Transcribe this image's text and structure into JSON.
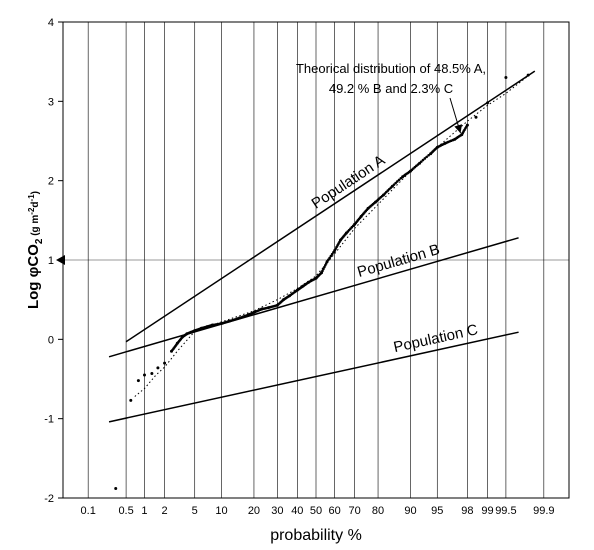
{
  "chart_data": {
    "type": "scatter",
    "xlabel": "probability %",
    "ylabel": {
      "main": "Log φCO",
      "sub": "2",
      "unit_open": " (g m",
      "unit_exp1": "-2",
      "unit_mid": "d",
      "unit_exp2": "-1",
      "unit_close": ")"
    },
    "x_scale": "normal-probability",
    "xlim": [
      0.03,
      99.97
    ],
    "ylim": [
      -2,
      4
    ],
    "grid": "vertical",
    "x_ticks": [
      "0.1",
      "0.5",
      "1",
      "2",
      "5",
      "10",
      "20",
      "30",
      "40",
      "50",
      "60",
      "70",
      "80",
      "90",
      "95",
      "98",
      "99",
      "99.5",
      "99.9"
    ],
    "y_ticks": [
      "-2",
      "-1",
      "0",
      "1",
      "2",
      "3",
      "4"
    ],
    "y_marker": 1,
    "annotation": {
      "line1": "Theorical distribution of 48.5% A,",
      "line2": "49.2 % B and 2.3% C",
      "arrow_target": [
        97.5,
        2.6
      ]
    },
    "series": [
      {
        "label": "Population A",
        "style": "line",
        "points": [
          [
            0.5,
            -0.03
          ],
          [
            99.85,
            3.38
          ]
        ]
      },
      {
        "label": "Population B",
        "style": "line",
        "points": [
          [
            0.25,
            -0.22
          ],
          [
            99.7,
            1.28
          ]
        ]
      },
      {
        "label": "Population C",
        "style": "line",
        "points": [
          [
            0.25,
            -1.04
          ],
          [
            99.7,
            0.09
          ]
        ]
      },
      {
        "label": "",
        "style": "dotted",
        "points": [
          [
            0.7,
            -0.72
          ],
          [
            1.0,
            -0.62
          ],
          [
            1.5,
            -0.45
          ],
          [
            2.0,
            -0.35
          ],
          [
            3.0,
            -0.15
          ],
          [
            5.0,
            0.1
          ],
          [
            10,
            0.22
          ],
          [
            20,
            0.36
          ],
          [
            30,
            0.5
          ],
          [
            40,
            0.64
          ],
          [
            50,
            0.8
          ],
          [
            60,
            1.08
          ],
          [
            70,
            1.4
          ],
          [
            80,
            1.7
          ],
          [
            90,
            2.12
          ],
          [
            95,
            2.42
          ],
          [
            98,
            2.75
          ],
          [
            99,
            2.95
          ],
          [
            99.5,
            3.1
          ],
          [
            99.8,
            3.32
          ]
        ]
      },
      {
        "label": "",
        "style": "points",
        "points": [
          [
            0.33,
            -1.88
          ],
          [
            0.6,
            -0.77
          ],
          [
            0.8,
            -0.52
          ],
          [
            1.0,
            -0.45
          ],
          [
            1.3,
            -0.43
          ],
          [
            1.6,
            -0.36
          ],
          [
            2.0,
            -0.3
          ],
          [
            2.5,
            -0.15
          ],
          [
            3.0,
            -0.05
          ],
          [
            3.5,
            0.03
          ],
          [
            4.0,
            0.07
          ],
          [
            4.5,
            0.09
          ],
          [
            5.0,
            0.11
          ],
          [
            6.0,
            0.14
          ],
          [
            7.0,
            0.16
          ],
          [
            8.0,
            0.18
          ],
          [
            10,
            0.2
          ],
          [
            12,
            0.23
          ],
          [
            15,
            0.27
          ],
          [
            18,
            0.31
          ],
          [
            20,
            0.34
          ],
          [
            23,
            0.38
          ],
          [
            26,
            0.4
          ],
          [
            30,
            0.43
          ],
          [
            33,
            0.5
          ],
          [
            36,
            0.55
          ],
          [
            40,
            0.62
          ],
          [
            43,
            0.67
          ],
          [
            46,
            0.72
          ],
          [
            50,
            0.77
          ],
          [
            53,
            0.84
          ],
          [
            56,
            0.98
          ],
          [
            60,
            1.12
          ],
          [
            63,
            1.25
          ],
          [
            66,
            1.34
          ],
          [
            70,
            1.45
          ],
          [
            73,
            1.55
          ],
          [
            76,
            1.65
          ],
          [
            79,
            1.73
          ],
          [
            82,
            1.82
          ],
          [
            85,
            1.93
          ],
          [
            88,
            2.05
          ],
          [
            90,
            2.12
          ],
          [
            92,
            2.22
          ],
          [
            94,
            2.34
          ],
          [
            95,
            2.42
          ],
          [
            96,
            2.47
          ],
          [
            97,
            2.52
          ],
          [
            97.6,
            2.58
          ],
          [
            98,
            2.7
          ],
          [
            98.5,
            2.8
          ],
          [
            99,
            2.98
          ],
          [
            99.5,
            3.3
          ],
          [
            99.8,
            3.33
          ]
        ]
      }
    ]
  }
}
